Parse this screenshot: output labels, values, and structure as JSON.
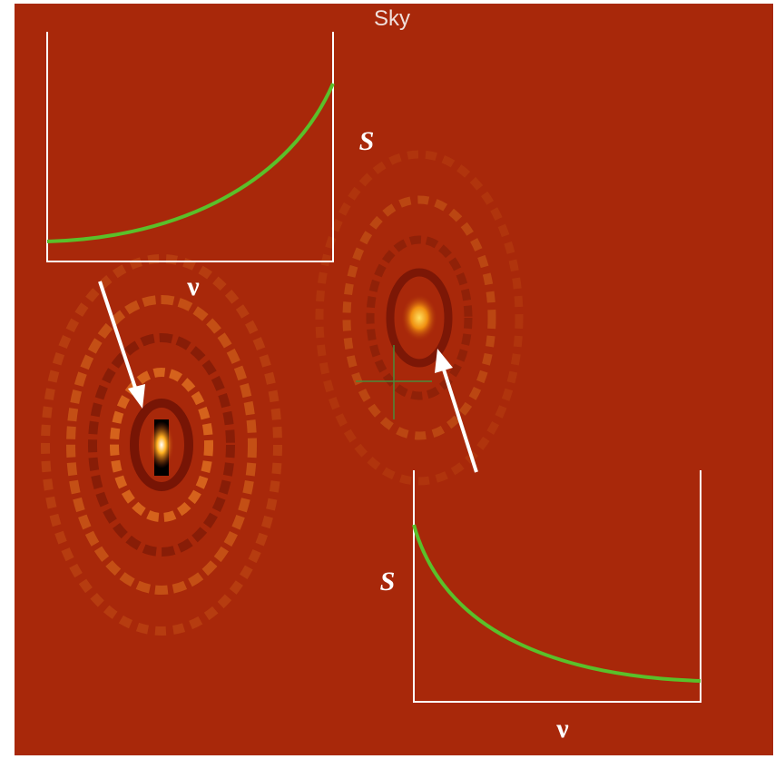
{
  "figure": {
    "title": "Sky",
    "insets": [
      {
        "y_label": "S",
        "x_label": "ν"
      },
      {
        "y_label": "S",
        "x_label": "ν"
      }
    ]
  }
}
